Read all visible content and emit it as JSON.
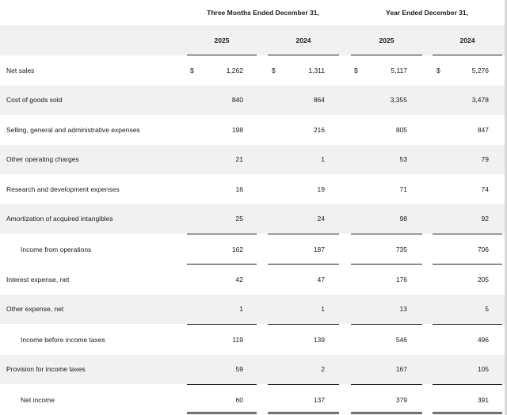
{
  "headers": {
    "three_months": "Three Months Ended December 31,",
    "year": "Year Ended December 31,",
    "years": [
      "2025",
      "2024",
      "2025",
      "2024"
    ]
  },
  "currency_symbol": "$",
  "rows": [
    {
      "label": "Net sales",
      "values": [
        "1,262",
        "1,311",
        "5,117",
        "5,276"
      ]
    },
    {
      "label": "Cost of goods sold",
      "values": [
        "840",
        "864",
        "3,355",
        "3,478"
      ]
    },
    {
      "label": "Selling, general and administrative expenses",
      "values": [
        "198",
        "216",
        "805",
        "847"
      ]
    },
    {
      "label": "Other operating charges",
      "values": [
        "21",
        "1",
        "53",
        "79"
      ]
    },
    {
      "label": "Research and development expenses",
      "values": [
        "16",
        "19",
        "71",
        "74"
      ]
    },
    {
      "label": "Amortization of acquired intangibles",
      "values": [
        "25",
        "24",
        "98",
        "92"
      ]
    },
    {
      "label": "Income from operations",
      "values": [
        "162",
        "187",
        "735",
        "706"
      ]
    },
    {
      "label": "Interest expense, net",
      "values": [
        "42",
        "47",
        "176",
        "205"
      ]
    },
    {
      "label": "Other expense, net",
      "values": [
        "1",
        "1",
        "13",
        "5"
      ]
    },
    {
      "label": "Income before income taxes",
      "values": [
        "119",
        "139",
        "546",
        "496"
      ]
    },
    {
      "label": "Provision for income taxes",
      "values": [
        "59",
        "2",
        "167",
        "105"
      ]
    },
    {
      "label": "Net income",
      "values": [
        "60",
        "137",
        "379",
        "391"
      ]
    }
  ]
}
